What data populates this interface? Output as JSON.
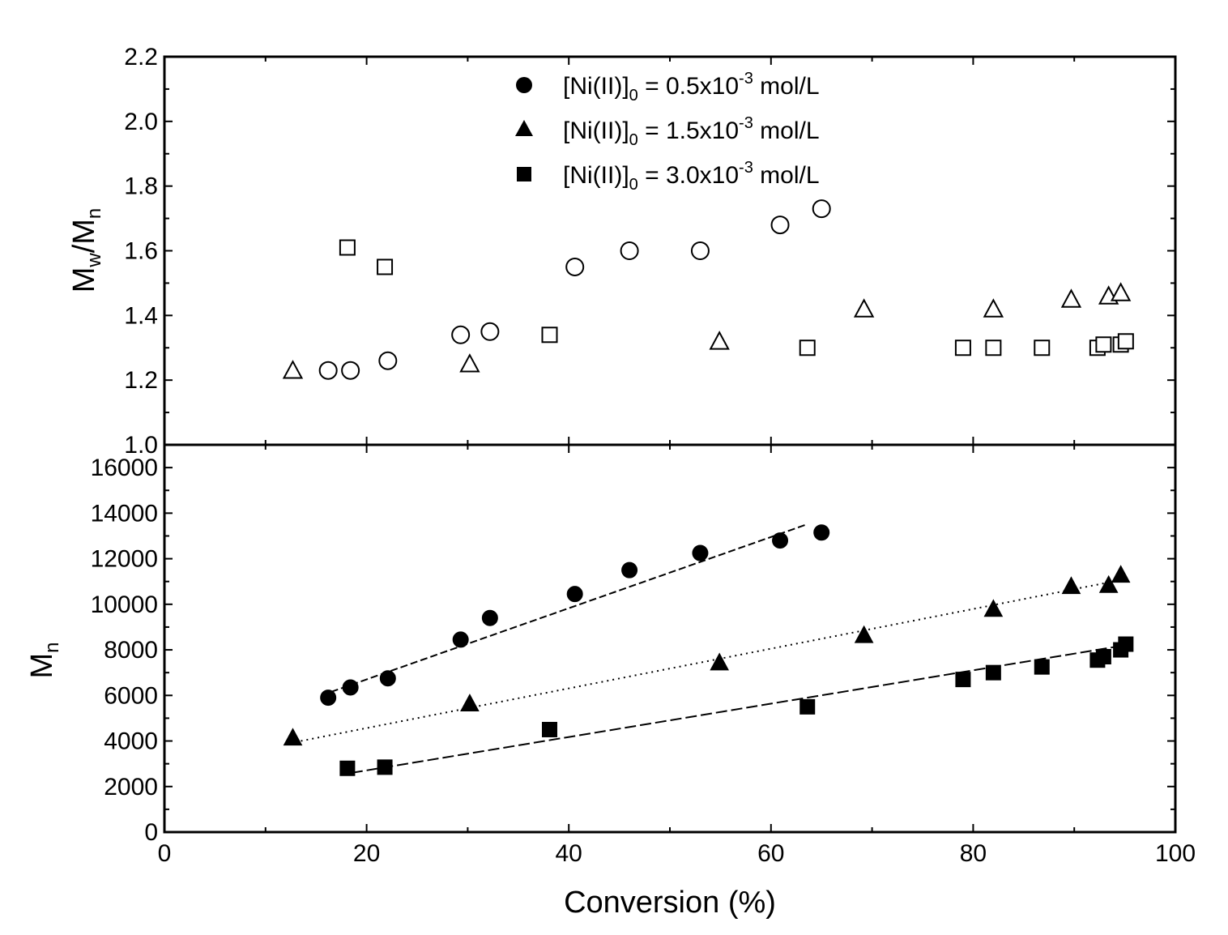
{
  "chart_data": {
    "type": "scatter",
    "xlabel": "Conversion (%)",
    "xlim": [
      0,
      100
    ],
    "xticks": [
      "0",
      "20",
      "40",
      "60",
      "80",
      "100"
    ],
    "top_panel": {
      "ylabel_main": "M",
      "ylabel_sub1": "w",
      "ylabel_slash": "/M",
      "ylabel_sub2": "n",
      "ylim": [
        1.0,
        2.2
      ],
      "yticks": [
        "1.0",
        "1.2",
        "1.4",
        "1.6",
        "1.8",
        "2.0",
        "2.2"
      ],
      "marker_fill": "open",
      "series": [
        {
          "name": "0.5",
          "marker": "circle",
          "x": [
            16.2,
            18.4,
            22.1,
            29.3,
            32.2,
            40.6,
            46.0,
            53.0,
            60.9,
            65.0
          ],
          "y": [
            1.23,
            1.23,
            1.26,
            1.34,
            1.35,
            1.55,
            1.6,
            1.6,
            1.68,
            1.73
          ]
        },
        {
          "name": "1.5",
          "marker": "triangle",
          "x": [
            12.7,
            30.2,
            54.9,
            69.2,
            82.0,
            89.7,
            93.4,
            94.6
          ],
          "y": [
            1.23,
            1.25,
            1.32,
            1.42,
            1.42,
            1.45,
            1.46,
            1.47
          ]
        },
        {
          "name": "3.0",
          "marker": "square",
          "x": [
            18.1,
            21.8,
            38.1,
            63.6,
            79.0,
            82.0,
            86.8,
            92.3,
            92.9,
            94.6,
            95.1
          ],
          "y": [
            1.61,
            1.55,
            1.34,
            1.3,
            1.3,
            1.3,
            1.3,
            1.3,
            1.31,
            1.31,
            1.32
          ]
        }
      ]
    },
    "bottom_panel": {
      "ylabel_main": "M",
      "ylabel_sub": "n",
      "ylim": [
        0,
        17000
      ],
      "yticks": [
        "0",
        "2000",
        "4000",
        "6000",
        "8000",
        "10000",
        "12000",
        "14000",
        "16000"
      ],
      "marker_fill": "filled",
      "series": [
        {
          "name": "0.5",
          "marker": "circle",
          "x": [
            16.2,
            18.4,
            22.1,
            29.3,
            32.2,
            40.6,
            46.0,
            53.0,
            60.9,
            65.0
          ],
          "y": [
            5900,
            6350,
            6750,
            8450,
            9400,
            10450,
            11500,
            12250,
            12800,
            13150
          ],
          "fit": {
            "x": [
              15.5,
              63.5
            ],
            "y": [
              6000,
              13500
            ],
            "dash": "9 4"
          }
        },
        {
          "name": "1.5",
          "marker": "triangle",
          "x": [
            12.7,
            30.2,
            54.9,
            69.2,
            82.0,
            89.7,
            93.4,
            94.6
          ],
          "y": [
            4150,
            5650,
            7450,
            8650,
            9800,
            10800,
            10850,
            11300
          ],
          "fit": {
            "x": [
              13.5,
              95
            ],
            "y": [
              4000,
              11100
            ],
            "dash": "2 5"
          }
        },
        {
          "name": "3.0",
          "marker": "square",
          "x": [
            18.1,
            21.8,
            38.1,
            63.6,
            79.0,
            82.0,
            86.8,
            92.3,
            92.9,
            94.6,
            95.1
          ],
          "y": [
            2800,
            2850,
            4500,
            5500,
            6700,
            7000,
            7250,
            7550,
            7700,
            8000,
            8250
          ],
          "fit": {
            "x": [
              18.5,
              95
            ],
            "y": [
              2600,
              8200
            ],
            "dash": "14 5"
          }
        }
      ]
    },
    "legend": {
      "placement": "top-center",
      "entries": [
        {
          "marker": "circle",
          "prefix": "[Ni(II)]",
          "sub": "0",
          "middle": " = 0.5x10",
          "sup": "-3",
          "suffix": " mol/L"
        },
        {
          "marker": "triangle",
          "prefix": "[Ni(II)]",
          "sub": "0",
          "middle": " = 1.5x10",
          "sup": "-3",
          "suffix": " mol/L"
        },
        {
          "marker": "square",
          "prefix": "[Ni(II)]",
          "sub": "0",
          "middle": " = 3.0x10",
          "sup": "-3",
          "suffix": " mol/L"
        }
      ]
    },
    "colors": {
      "ink": "#000000",
      "background": "#ffffff"
    }
  }
}
